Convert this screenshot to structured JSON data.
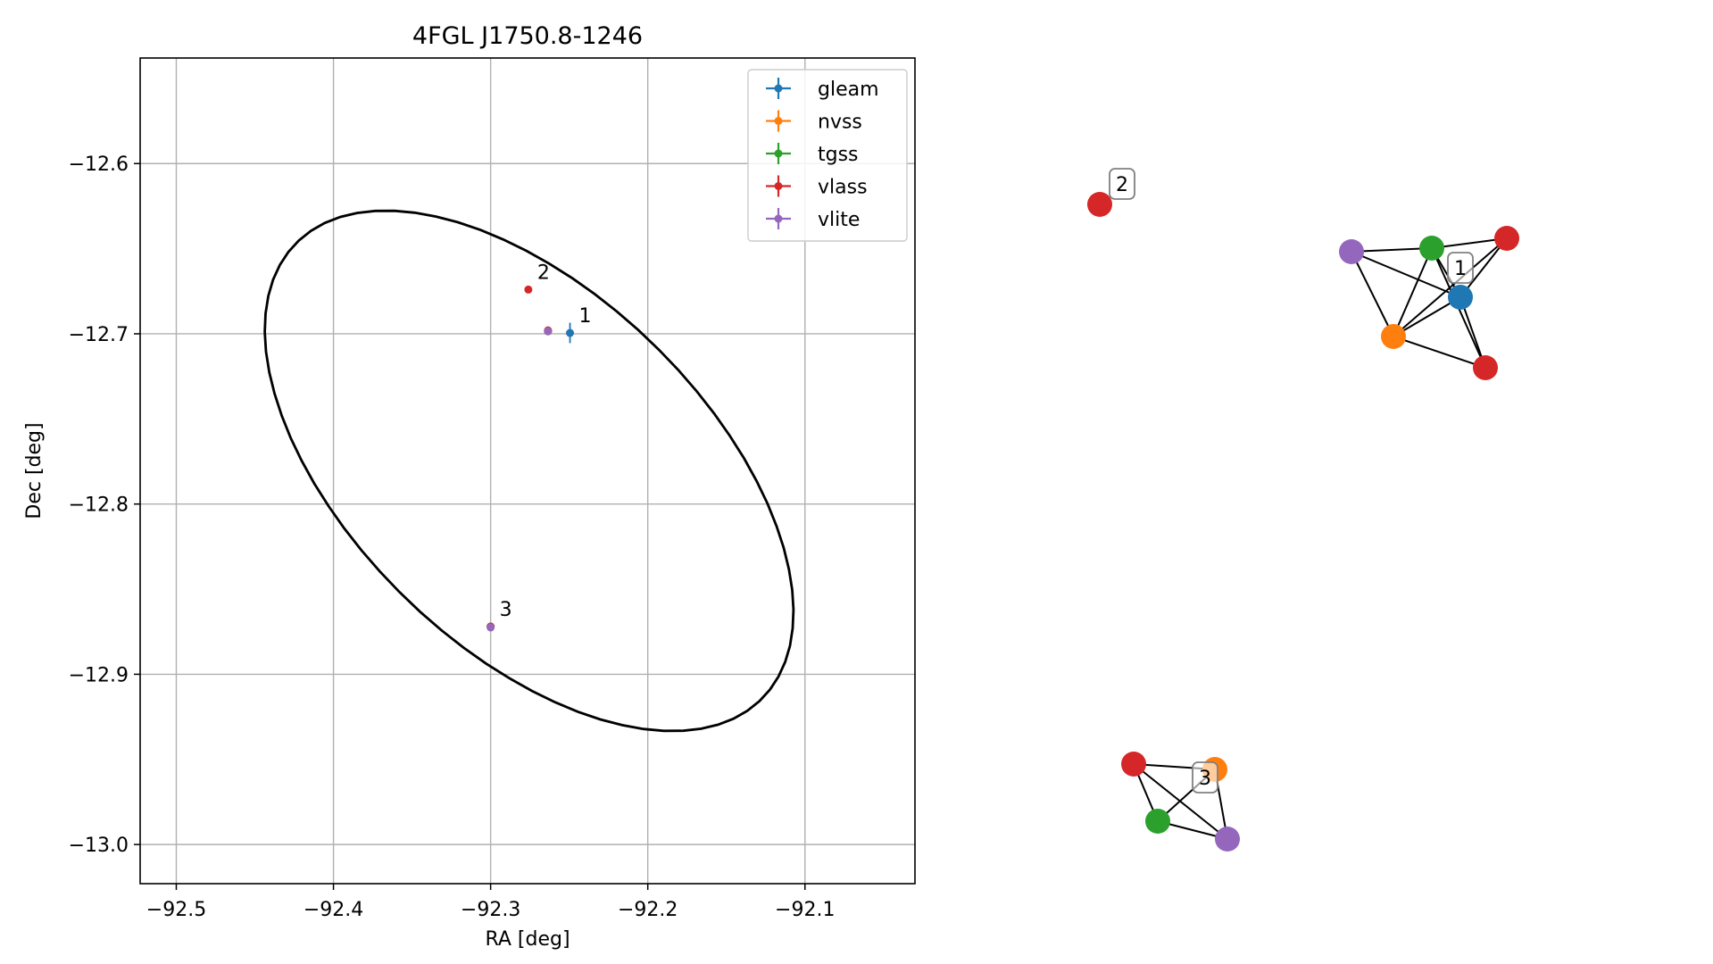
{
  "chart_data": [
    {
      "type": "scatter",
      "title": "4FGL J1750.8-1246",
      "xlabel": "RA [deg]",
      "ylabel": "Dec [deg]",
      "xlim": [
        -92.523,
        -92.03
      ],
      "ylim": [
        -13.023,
        -12.538
      ],
      "xticks": [
        -92.5,
        -92.4,
        -92.3,
        -92.2,
        -92.1
      ],
      "yticks": [
        -12.6,
        -12.7,
        -12.8,
        -12.9,
        -13.0
      ],
      "xtick_labels": [
        "−92.5",
        "−92.4",
        "−92.3",
        "−92.2",
        "−92.1"
      ],
      "ytick_labels": [
        "−12.6",
        "−12.7",
        "−12.8",
        "−12.9",
        "−13.0"
      ],
      "grid": true,
      "legend_position": "top-right",
      "series": [
        {
          "name": "gleam",
          "color": "#1f77b4",
          "points": [
            {
              "x": -92.2495,
              "y": -12.6995,
              "xerr": 0.002,
              "yerr": 0.006
            }
          ]
        },
        {
          "name": "nvss",
          "color": "#ff7f0e",
          "points": [
            {
              "x": -92.2635,
              "y": -12.6985
            },
            {
              "x": -92.3,
              "y": -12.872
            }
          ]
        },
        {
          "name": "tgss",
          "color": "#2ca02c",
          "points": [
            {
              "x": -92.2635,
              "y": -12.6985
            },
            {
              "x": -92.3,
              "y": -12.872
            }
          ]
        },
        {
          "name": "vlass",
          "color": "#d62728",
          "points": [
            {
              "x": -92.2635,
              "y": -12.698
            },
            {
              "x": -92.2635,
              "y": -12.6985
            },
            {
              "x": -92.276,
              "y": -12.674
            },
            {
              "x": -92.3,
              "y": -12.872
            }
          ]
        },
        {
          "name": "vlite",
          "color": "#9467bd",
          "points": [
            {
              "x": -92.2635,
              "y": -12.6985
            },
            {
              "x": -92.3,
              "y": -12.8725
            }
          ]
        }
      ],
      "source_labels": [
        {
          "text": "1",
          "x": -92.2495,
          "y": -12.6995
        },
        {
          "text": "2",
          "x": -92.276,
          "y": -12.674
        },
        {
          "text": "3",
          "x": -92.3,
          "y": -12.872
        }
      ],
      "ellipse": {
        "center_x": -92.2755,
        "center_y": -12.7805,
        "semi_axis_a": 0.2,
        "semi_axis_b": 0.108,
        "angle_deg": -40
      }
    },
    {
      "type": "network",
      "groups": [
        {
          "label": "1",
          "nodes": [
            {
              "id": "gleam",
              "color": "#1f77b4"
            },
            {
              "id": "tgss",
              "color": "#2ca02c"
            },
            {
              "id": "vlite",
              "color": "#9467bd"
            },
            {
              "id": "nvss",
              "color": "#ff7f0e"
            },
            {
              "id": "vlass_a",
              "color": "#d62728"
            },
            {
              "id": "vlass_b",
              "color": "#d62728"
            }
          ],
          "edges": [
            [
              "vlite",
              "tgss"
            ],
            [
              "vlite",
              "gleam"
            ],
            [
              "vlite",
              "nvss"
            ],
            [
              "tgss",
              "vlass_a"
            ],
            [
              "tgss",
              "gleam"
            ],
            [
              "tgss",
              "nvss"
            ],
            [
              "tgss",
              "vlass_b"
            ],
            [
              "vlass_a",
              "gleam"
            ],
            [
              "vlass_a",
              "nvss"
            ],
            [
              "gleam",
              "vlass_b"
            ],
            [
              "gleam",
              "nvss"
            ],
            [
              "nvss",
              "vlass_b"
            ]
          ]
        },
        {
          "label": "2",
          "nodes": [
            {
              "id": "vlass",
              "color": "#d62728"
            }
          ],
          "edges": []
        },
        {
          "label": "3",
          "nodes": [
            {
              "id": "vlass",
              "color": "#d62728"
            },
            {
              "id": "nvss",
              "color": "#ff7f0e"
            },
            {
              "id": "tgss",
              "color": "#2ca02c"
            },
            {
              "id": "vlite",
              "color": "#9467bd"
            }
          ],
          "edges": [
            [
              "vlass",
              "nvss"
            ],
            [
              "vlass",
              "tgss"
            ],
            [
              "vlass",
              "vlite"
            ],
            [
              "nvss",
              "tgss"
            ],
            [
              "nvss",
              "vlite"
            ],
            [
              "tgss",
              "vlite"
            ]
          ]
        }
      ]
    }
  ]
}
